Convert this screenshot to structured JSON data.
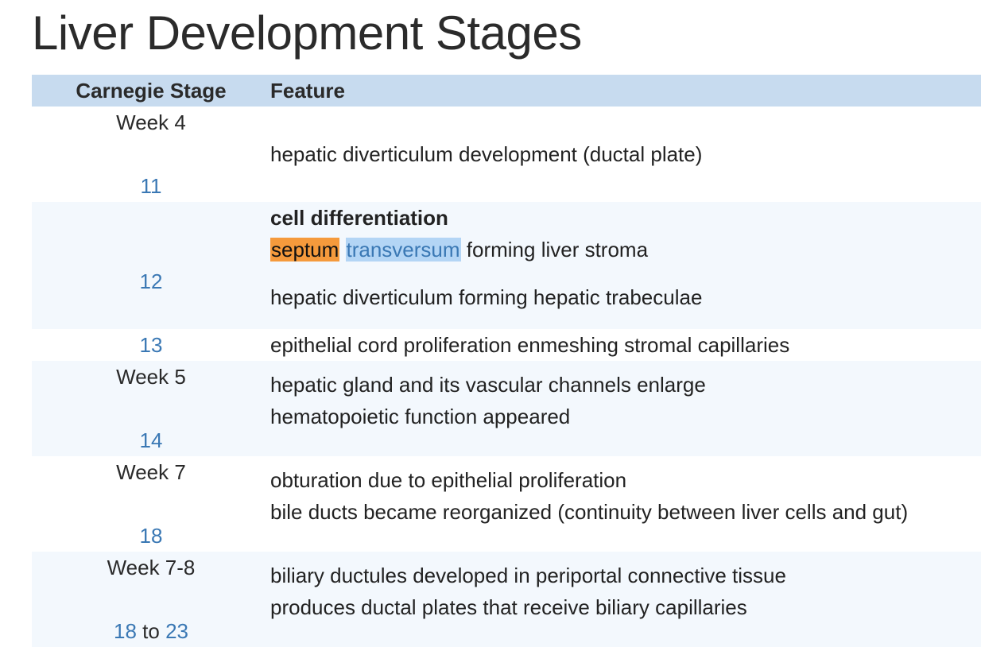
{
  "page": {
    "title": "Liver Development Stages"
  },
  "table": {
    "headers": [
      "Carnegie Stage",
      "Feature"
    ],
    "rows": [
      {
        "week": "Week 4",
        "stage": "11",
        "features": [
          "hepatic diverticulum development (ductal plate)"
        ]
      },
      {
        "week": "",
        "stage": "12",
        "bold_feature": "cell differentiation",
        "highlighted": {
          "word1": "septum",
          "word2": "transversum",
          "rest": " forming liver stroma"
        },
        "features": [
          "hepatic diverticulum forming hepatic trabeculae"
        ]
      },
      {
        "week": "",
        "stage": "13",
        "features": [
          "epithelial cord proliferation enmeshing stromal capillaries"
        ]
      },
      {
        "week": "Week 5",
        "stage": "14",
        "features": [
          "hepatic gland and its vascular channels enlarge",
          "hematopoietic function appeared"
        ]
      },
      {
        "week": "Week 7",
        "stage": "18",
        "features": [
          "obturation due to epithelial proliferation",
          "bile ducts became reorganized (continuity between liver cells and gut)"
        ]
      },
      {
        "week": "Week 7-8",
        "stage_from": "18",
        "stage_to_word": "to",
        "stage_to": "23",
        "features": [
          "biliary ductules developed in periportal connective tissue",
          "produces ductal plates that receive biliary capillaries"
        ]
      }
    ]
  },
  "colors": {
    "header_bg": "#c7dbef",
    "row_tint": "#f3f8fd",
    "link": "#3a78b4",
    "highlight_orange": "#f59a3c",
    "highlight_blue": "#b3d5f5"
  }
}
